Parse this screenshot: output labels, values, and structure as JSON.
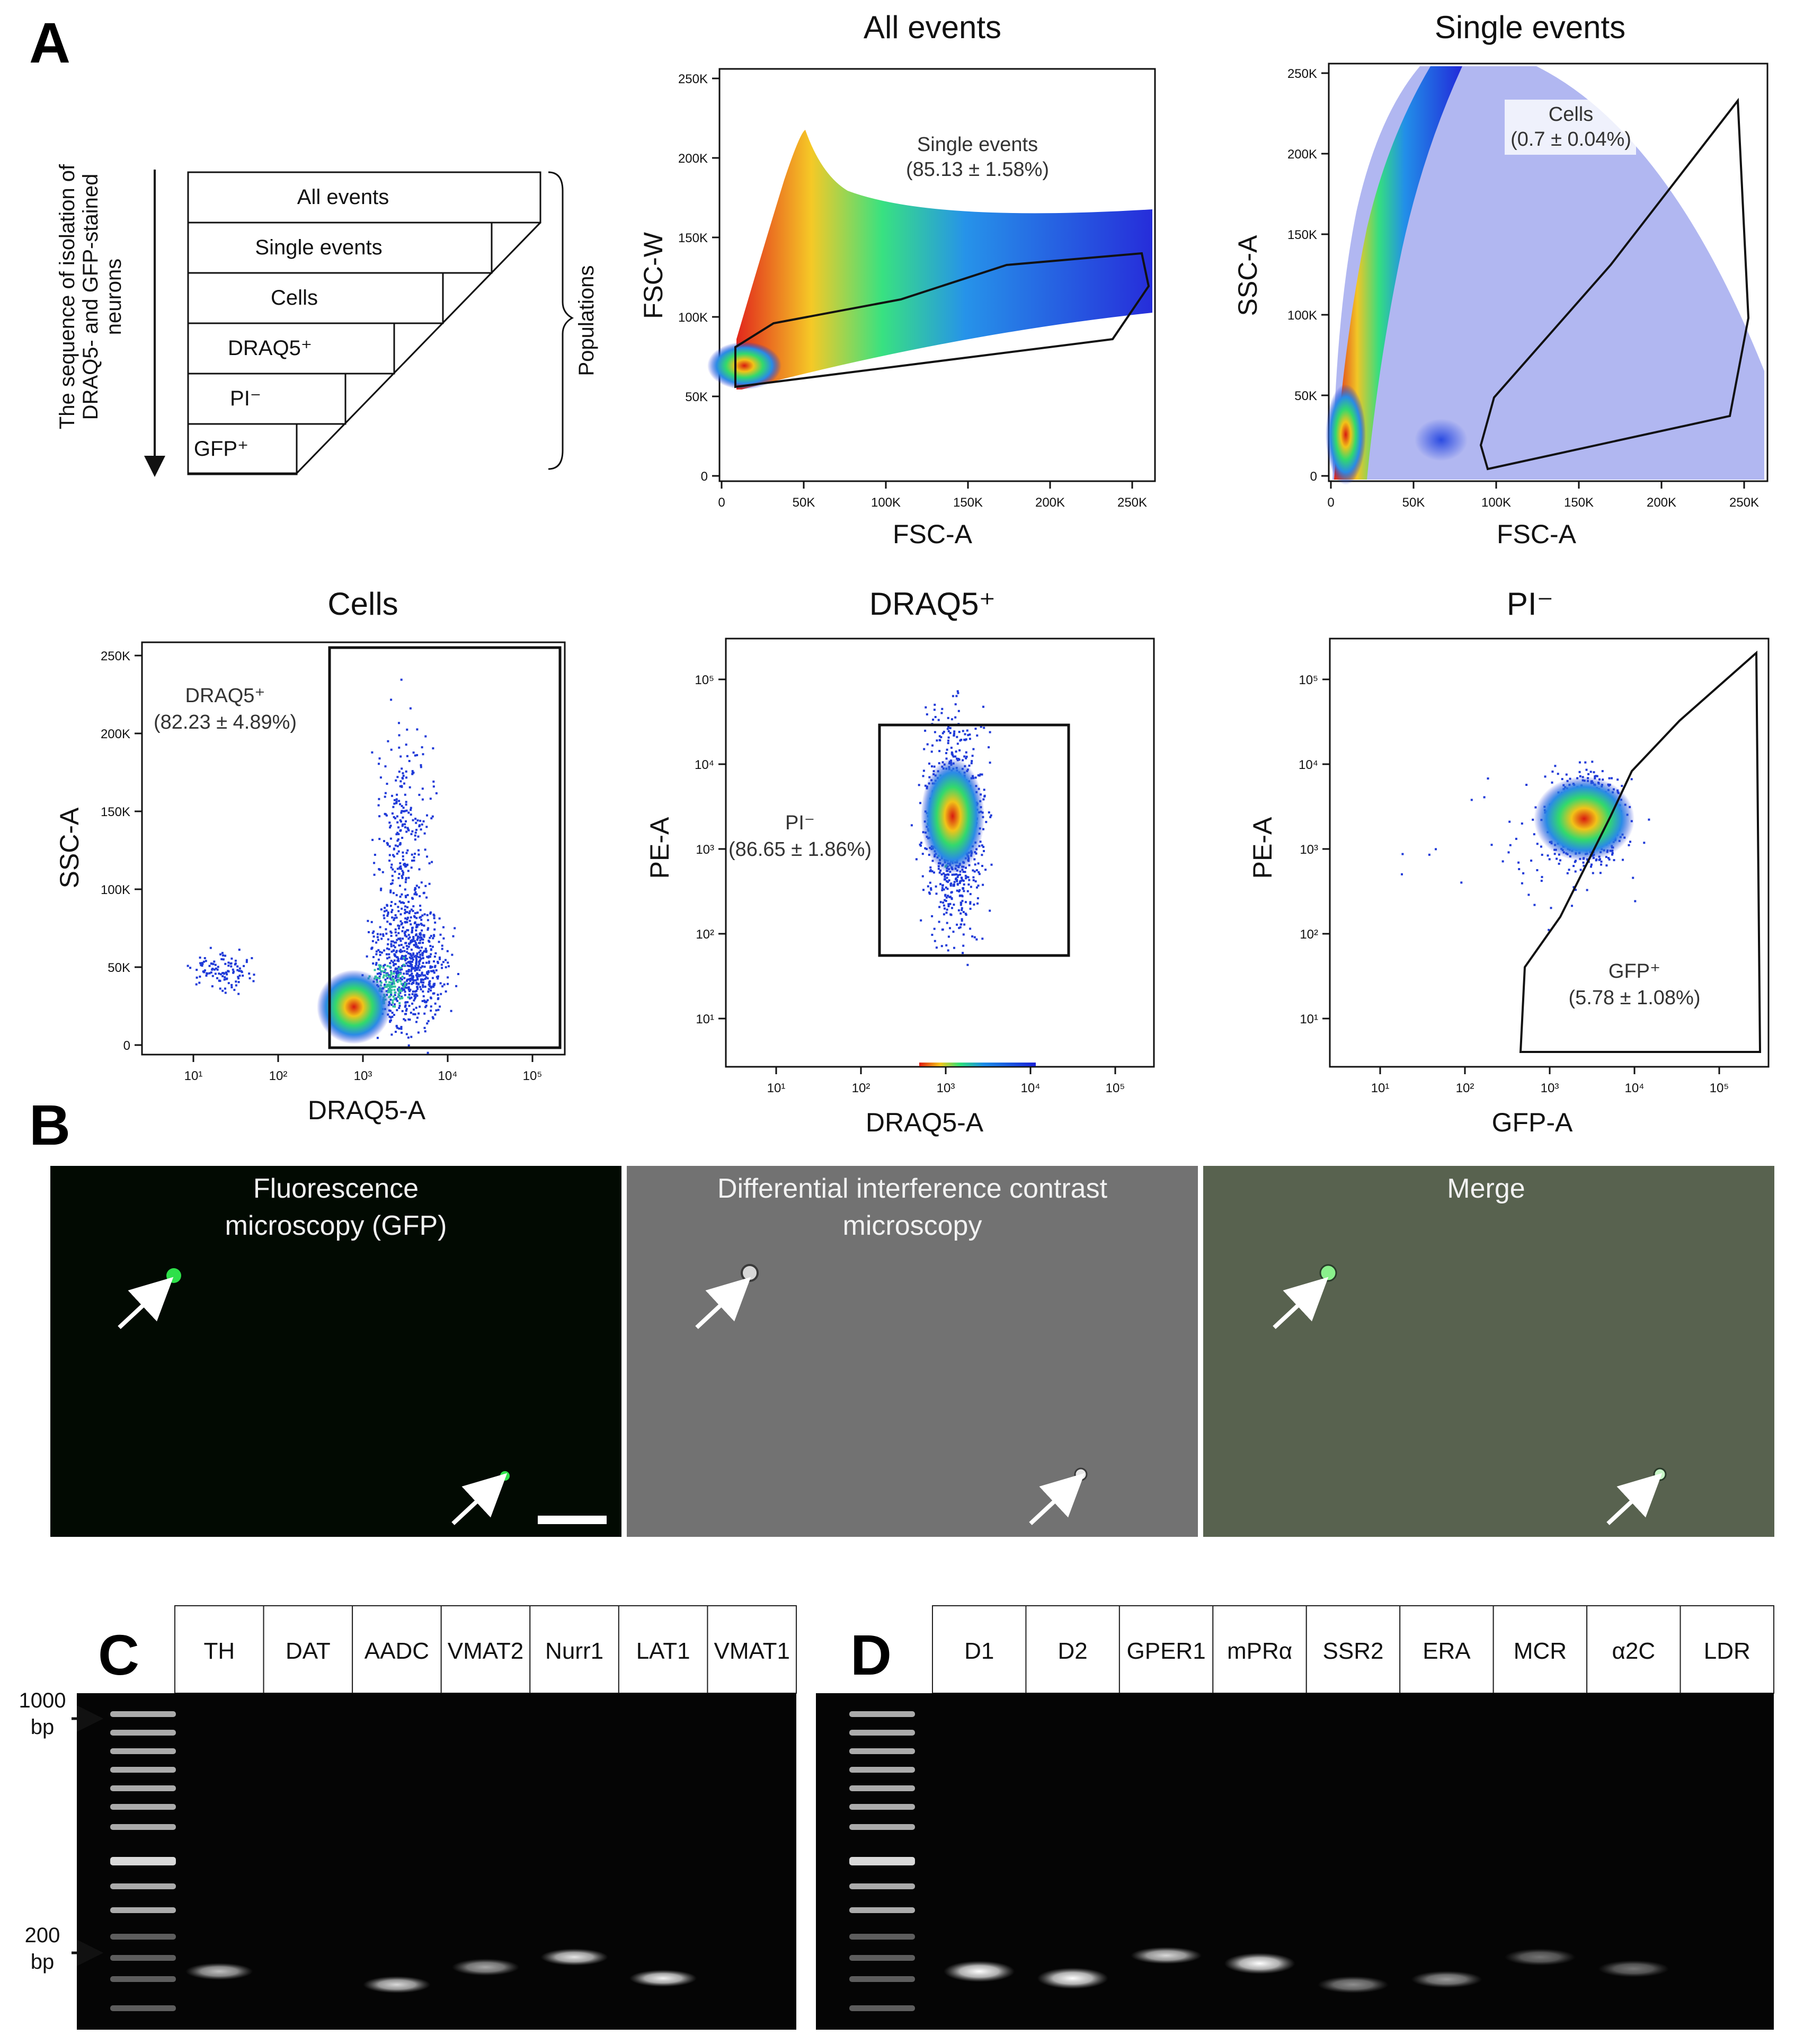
{
  "panels": {
    "A": "A",
    "B": "B",
    "C": "C",
    "D": "D"
  },
  "sequence": {
    "axis_label_lines": [
      "The sequence of isolation of",
      "DRAQ5- and GFP-stained",
      "neurons"
    ],
    "populations_label": "Populations",
    "steps": [
      {
        "text": "All events",
        "color": "#111111"
      },
      {
        "text": "Single events",
        "color": "#111111"
      },
      {
        "text": "Cells",
        "color": "#111111"
      },
      {
        "text": "DRAQ5⁺",
        "color": "#e0191f"
      },
      {
        "text": "PI⁻",
        "color": "#111111"
      },
      {
        "text": "GFP⁺",
        "color": "#27b53a"
      }
    ]
  },
  "flow": {
    "all_events": {
      "title": "All events",
      "xlabel": "FSC-A",
      "ylabel": "FSC-W",
      "xticks": [
        "0",
        "50K",
        "100K",
        "150K",
        "200K",
        "250K"
      ],
      "yticks": [
        "0",
        "50K",
        "100K",
        "150K",
        "200K",
        "250K"
      ],
      "gate_label": "Single events",
      "gate_value": "(85.13 ± 1.58%)"
    },
    "single_events": {
      "title": "Single events",
      "xlabel": "FSC-A",
      "ylabel": "SSC-A",
      "xticks": [
        "0",
        "50K",
        "100K",
        "150K",
        "200K",
        "250K"
      ],
      "yticks": [
        "0",
        "50K",
        "100K",
        "150K",
        "200K",
        "250K"
      ],
      "gate_label": "Cells",
      "gate_value": "(0.7 ± 0.04%)"
    },
    "cells": {
      "title": "Cells",
      "xlabel": "DRAQ5-A",
      "ylabel": "SSC-A",
      "xticks": [
        "10¹",
        "10²",
        "10³",
        "10⁴",
        "10⁵"
      ],
      "yticks": [
        "0",
        "50K",
        "100K",
        "150K",
        "200K",
        "250K"
      ],
      "gate_label": "DRAQ5⁺",
      "gate_value": "(82.23 ± 4.89%)"
    },
    "draq5": {
      "title": "DRAQ5⁺",
      "xlabel": "DRAQ5-A",
      "ylabel": "PE-A",
      "xticks": [
        "10¹",
        "10²",
        "10³",
        "10⁴",
        "10⁵"
      ],
      "yticks": [
        "10¹",
        "10²",
        "10³",
        "10⁴",
        "10⁵"
      ],
      "gate_label": "PI⁻",
      "gate_value": "(86.65 ± 1.86%)"
    },
    "pi": {
      "title": "PI⁻",
      "xlabel": "GFP-A",
      "ylabel": "PE-A",
      "xticks": [
        "10¹",
        "10²",
        "10³",
        "10⁴",
        "10⁵"
      ],
      "yticks": [
        "10¹",
        "10²",
        "10³",
        "10⁴",
        "10⁵"
      ],
      "gate_label": "GFP⁺",
      "gate_value": "(5.78 ± 1.08%)"
    }
  },
  "microscopy": {
    "fluor": [
      "Fluorescence",
      "microscopy (GFP)"
    ],
    "dic": [
      "Differential interference contrast",
      "microscopy"
    ],
    "merge": "Merge"
  },
  "gel": {
    "marker_1000": [
      "1000",
      "bp"
    ],
    "marker_200": [
      "200",
      "bp"
    ],
    "C_lanes": [
      "TH",
      "DAT",
      "AADC",
      "VMAT2",
      "Nurr1",
      "LAT1",
      "VMAT1"
    ],
    "D_lanes": [
      "D1",
      "D2",
      "GPER1",
      "mPRα",
      "SSR2",
      "ERA",
      "MCR",
      "α2C",
      "LDR"
    ]
  },
  "colors": {
    "draq5_red": "#e0191f",
    "gfp_green": "#27b53a",
    "gel_bg": "#050505"
  }
}
